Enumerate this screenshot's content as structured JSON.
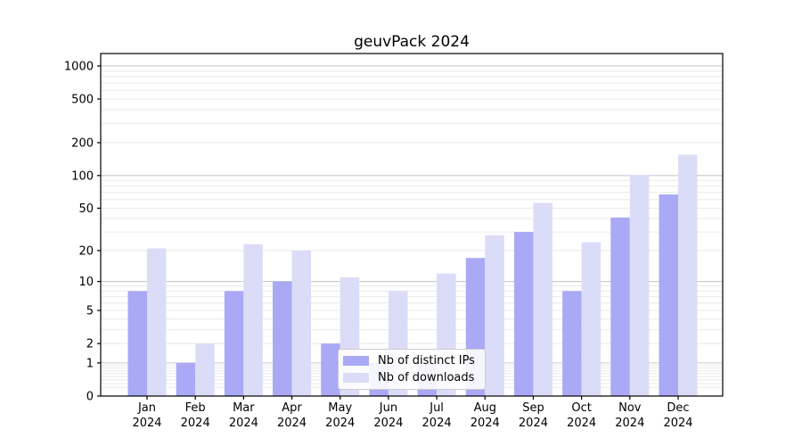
{
  "chart_data": {
    "type": "bar",
    "title": "geuvPack 2024",
    "categories": [
      "Jan",
      "Feb",
      "Mar",
      "Apr",
      "May",
      "Jun",
      "Jul",
      "Aug",
      "Sep",
      "Oct",
      "Nov",
      "Dec"
    ],
    "year_label": "2024",
    "series": [
      {
        "name": "Nb of distinct IPs",
        "color": "#a9a9f6",
        "values": [
          8,
          1,
          8,
          10,
          2,
          1,
          1,
          17,
          30,
          8,
          41,
          67
        ]
      },
      {
        "name": "Nb of downloads",
        "color": "#dcdcf9",
        "values": [
          21,
          2,
          23,
          20,
          11,
          8,
          12,
          28,
          56,
          24,
          101,
          155
        ]
      }
    ],
    "xlabel": "",
    "ylabel": "",
    "yscale": "log10(1+x)",
    "yticks": [
      0,
      1,
      2,
      5,
      10,
      20,
      50,
      100,
      200,
      500,
      1000
    ],
    "ylim": [
      0,
      1300
    ],
    "grid": true,
    "legend_position": "inside lower-center",
    "colors": {
      "axis": "#000000",
      "tick_label": "#000000",
      "major_grid": "#c9c9c9",
      "minor_grid": "#e9e9e9",
      "background": "#ffffff"
    }
  }
}
